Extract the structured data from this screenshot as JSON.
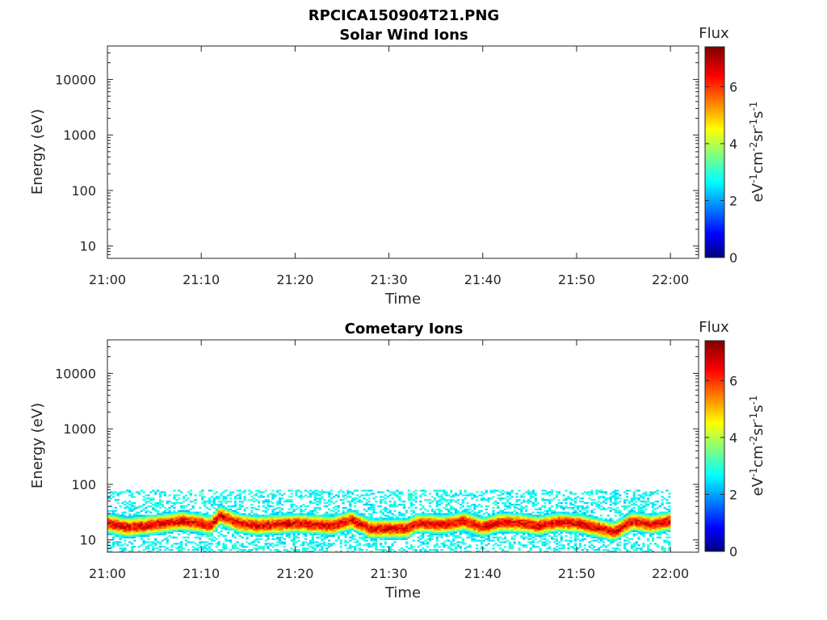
{
  "figure_title": "RPCICA150904T21.PNG",
  "colorbar": {
    "label": "Flux",
    "unit_parts": [
      "eV",
      "-1",
      "cm",
      "-2",
      "sr",
      "-1",
      "s",
      "-1"
    ],
    "ticks": [
      "0",
      "2",
      "4",
      "6"
    ],
    "range": [
      0,
      7.4
    ],
    "colormap": "jet"
  },
  "chart_data": [
    {
      "type": "heatmap",
      "title": "Solar Wind Ions",
      "xlabel": "Time",
      "ylabel": "Energy (eV)",
      "x_ticks": [
        "21:00",
        "21:10",
        "21:20",
        "21:30",
        "21:40",
        "21:50",
        "22:00"
      ],
      "x_range": [
        "21:00",
        "22:03"
      ],
      "y_ticks": [
        "10",
        "100",
        "1000",
        "10000"
      ],
      "y_range": [
        6,
        40000
      ],
      "y_scale": "log",
      "grid": false,
      "data": []
    },
    {
      "type": "heatmap",
      "title": "Cometary Ions",
      "xlabel": "Time",
      "ylabel": "Energy (eV)",
      "x_ticks": [
        "21:00",
        "21:10",
        "21:20",
        "21:30",
        "21:40",
        "21:50",
        "22:00"
      ],
      "x_range": [
        "21:00",
        "22:03"
      ],
      "y_ticks": [
        "10",
        "100",
        "1000",
        "10000"
      ],
      "y_range": [
        6,
        40000
      ],
      "y_scale": "log",
      "grid": false,
      "data_extent": {
        "time": [
          "21:00",
          "22:00"
        ],
        "energy_eV": [
          6,
          80
        ]
      },
      "peak_energy_eV": {
        "times": [
          "21:00",
          "21:02",
          "21:04",
          "21:06",
          "21:08",
          "21:10",
          "21:11",
          "21:12",
          "21:14",
          "21:16",
          "21:18",
          "21:20",
          "21:22",
          "21:24",
          "21:26",
          "21:28",
          "21:30",
          "21:32",
          "21:33",
          "21:36",
          "21:38",
          "21:40",
          "21:42",
          "21:44",
          "21:46",
          "21:48",
          "21:50",
          "21:52",
          "21:54",
          "21:56",
          "21:58",
          "22:00"
        ],
        "values": [
          20,
          17,
          18,
          20,
          22,
          20,
          18,
          28,
          20,
          18,
          19,
          20,
          19,
          18,
          23,
          16,
          16,
          16,
          20,
          19,
          22,
          17,
          21,
          20,
          18,
          21,
          20,
          17,
          14,
          22,
          19,
          22
        ]
      },
      "peak_flux": 6.6
    }
  ]
}
